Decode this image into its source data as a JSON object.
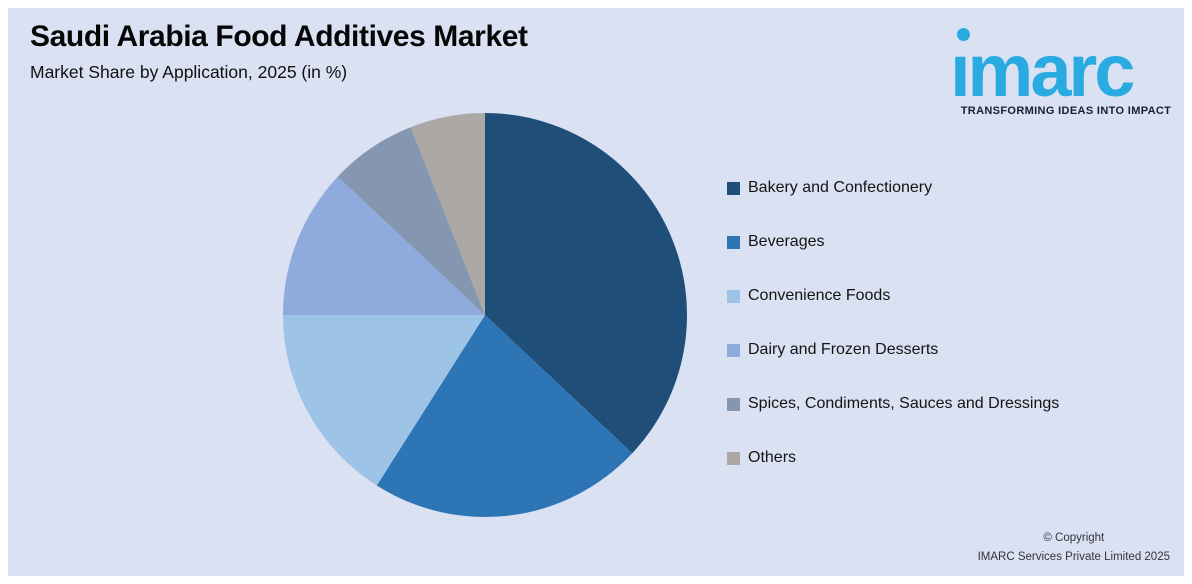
{
  "page": {
    "panel_background": "#DAE1F2",
    "outer_background": "#FFFFFF"
  },
  "header": {
    "title": "Saudi Arabia Food Additives Market",
    "subtitle": "Market Share by Application, 2025 (in %)"
  },
  "logo": {
    "brand": "imarc",
    "tagline": "TRANSFORMING IDEAS INTO IMPACT",
    "brand_color": "#29ABE2",
    "tagline_color": "#161F38"
  },
  "chart_data": {
    "type": "pie",
    "title": "Saudi Arabia Food Additives Market",
    "subtitle": "Market Share by Application, 2025 (in %)",
    "unit": "%",
    "start_angle_deg": 0,
    "direction": "clockwise",
    "legend_position": "right",
    "values_shown_on_chart": false,
    "slices": [
      {
        "label": "Bakery and Confectionery",
        "value": 37,
        "color": "#1F4E79"
      },
      {
        "label": "Beverages",
        "value": 22,
        "color": "#2E75B6"
      },
      {
        "label": "Convenience Foods",
        "value": 16,
        "color": "#9DC3E6"
      },
      {
        "label": "Dairy and Frozen Desserts",
        "value": 12,
        "color": "#8FAADC"
      },
      {
        "label": "Spices, Condiments, Sauces and Dressings",
        "value": 7,
        "color": "#8496B0"
      },
      {
        "label": "Others",
        "value": 6,
        "color": "#ACA8A5"
      }
    ]
  },
  "footer": {
    "copyright_line1": "© Copyright",
    "copyright_line2": "IMARC Services Private Limited 2025"
  }
}
